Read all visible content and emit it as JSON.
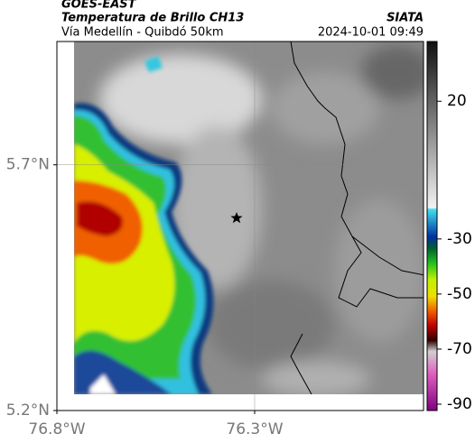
{
  "header": {
    "title": "GOES-EAST",
    "subtitle": "Temperatura de Brillo CH13",
    "region": "Vía Medellín - Quibdó 50km",
    "source": "SIATA",
    "timestamp": "2024-10-01 09:49"
  },
  "map": {
    "xlim": [
      -76.8,
      -75.873
    ],
    "ylim": [
      5.2,
      5.951
    ],
    "xticks": [
      {
        "value": -76.8,
        "label": "76.8°W"
      },
      {
        "value": -76.3,
        "label": "76.3°W"
      }
    ],
    "yticks": [
      {
        "value": 5.2,
        "label": "5.2°N"
      },
      {
        "value": 5.7,
        "label": "5.7°N"
      }
    ],
    "grid": true
  },
  "colorbar": {
    "lim": [
      -92.3,
      41.7
    ],
    "ticks": [
      20,
      -30,
      -50,
      -70,
      -90
    ]
  }
}
